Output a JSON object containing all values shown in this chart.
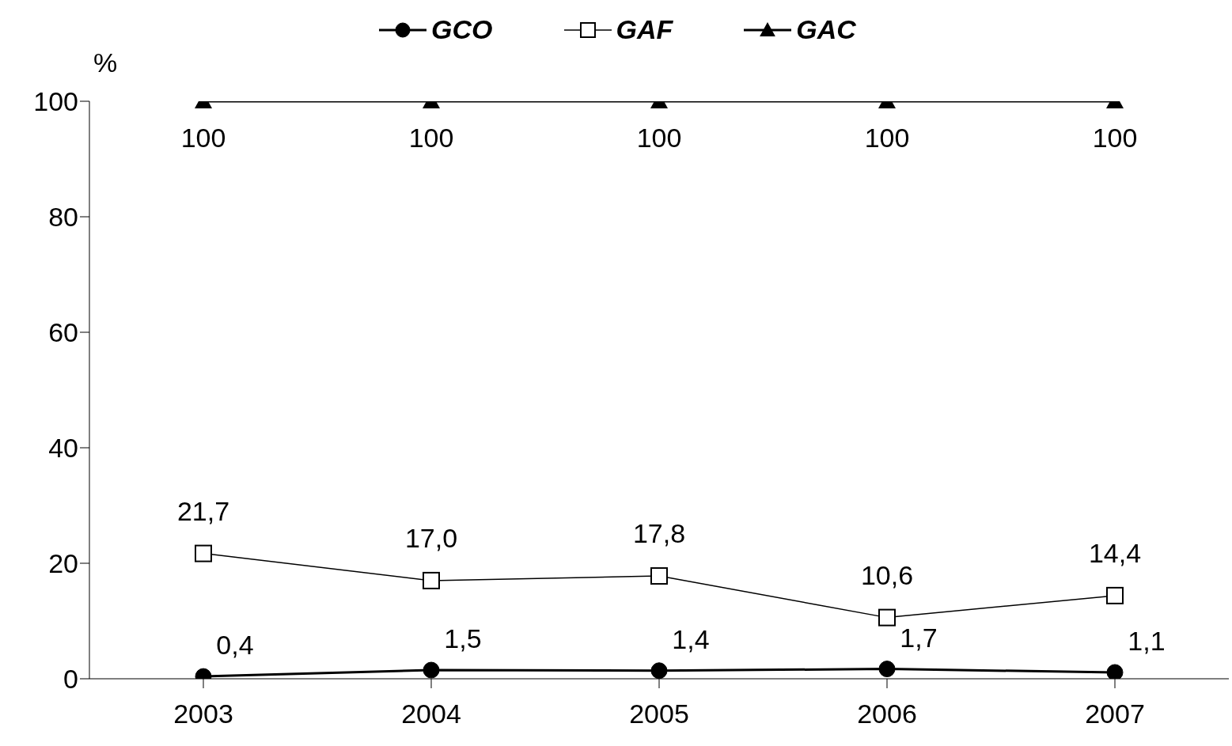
{
  "chart_data": {
    "type": "line",
    "ylabel": "%",
    "categories": [
      "2003",
      "2004",
      "2005",
      "2006",
      "2007"
    ],
    "series": [
      {
        "name": "GCO",
        "color": "#000000",
        "marker": "circle",
        "values": [
          0.4,
          1.5,
          1.4,
          1.7,
          1.1
        ],
        "value_labels": [
          "0,4",
          "1,5",
          "1,4",
          "1,7",
          "1,1"
        ]
      },
      {
        "name": "GAF",
        "color": "#000000",
        "marker": "square",
        "values": [
          21.7,
          17.0,
          17.8,
          10.6,
          14.4
        ],
        "value_labels": [
          "21,7",
          "17,0",
          "17,8",
          "10,6",
          "14,4"
        ]
      },
      {
        "name": "GAC",
        "color": "#000000",
        "marker": "triangle",
        "values": [
          100,
          100,
          100,
          100,
          100
        ],
        "value_labels": [
          "100",
          "100",
          "100",
          "100",
          "100"
        ]
      }
    ],
    "ylim": [
      0,
      100
    ],
    "yticks": [
      0,
      20,
      40,
      60,
      80,
      100
    ],
    "legend": "top",
    "grid": false
  }
}
